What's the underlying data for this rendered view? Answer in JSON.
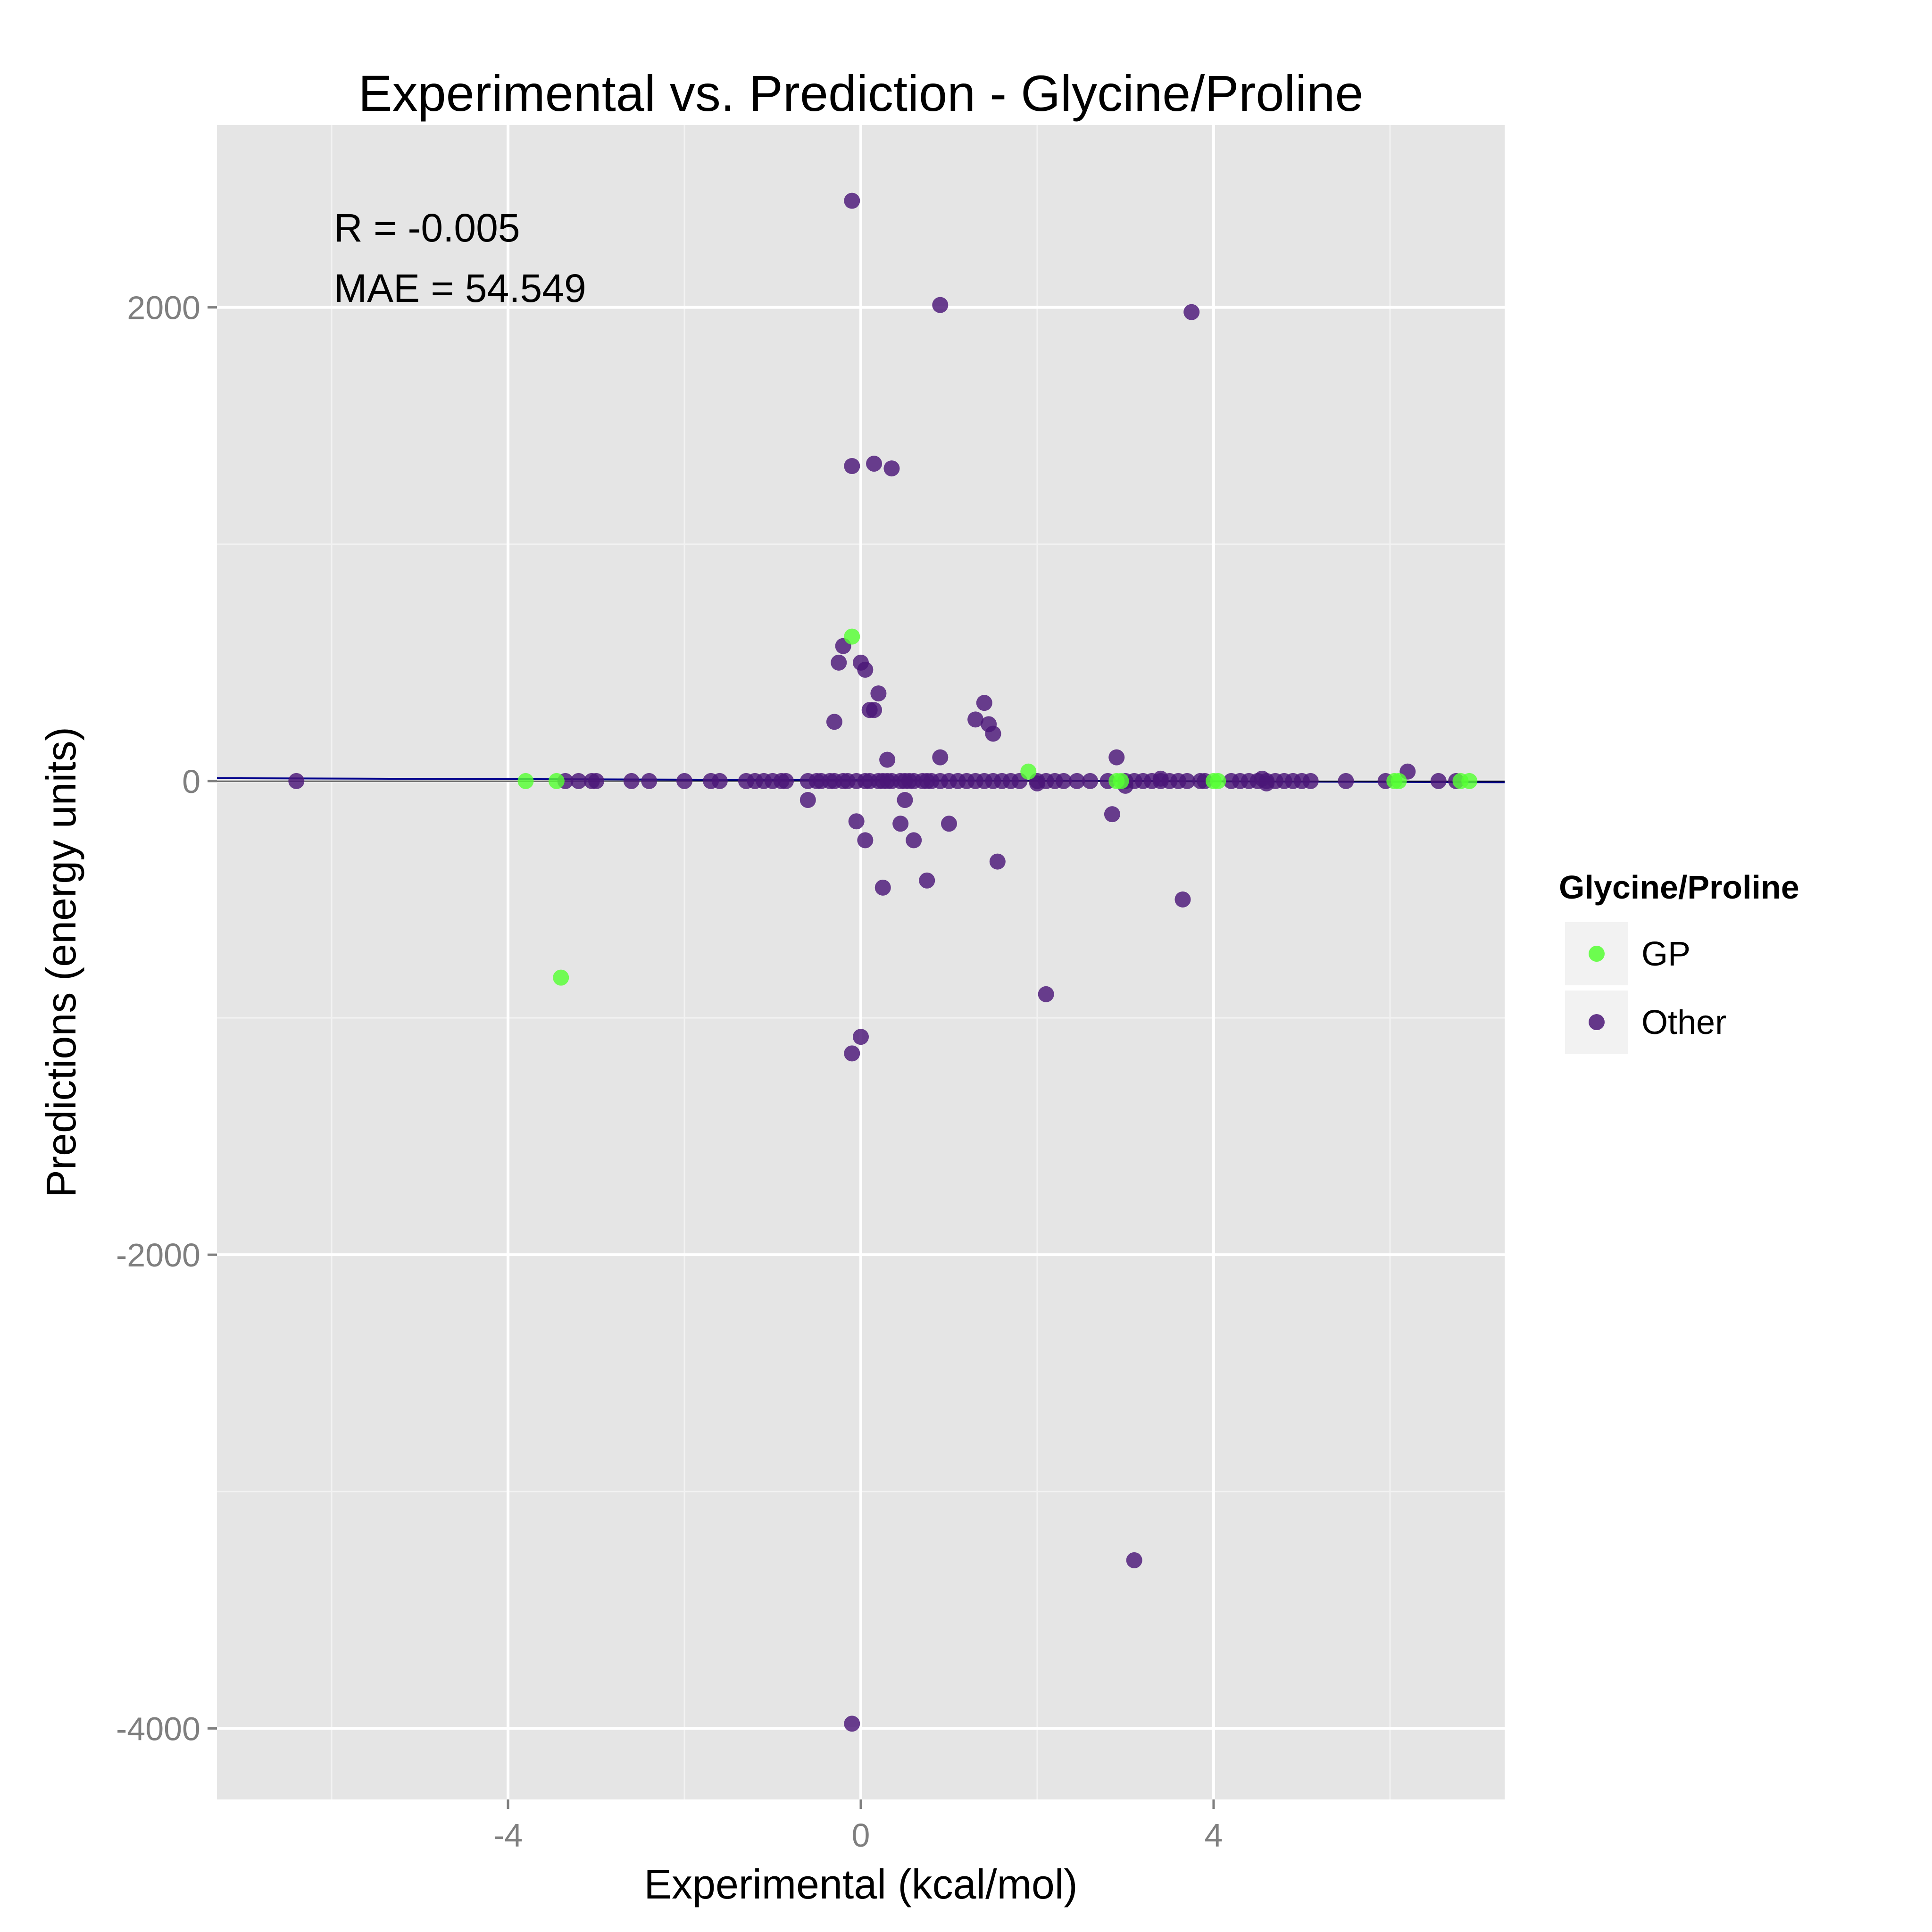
{
  "chart_data": {
    "type": "scatter",
    "title": "Experimental vs. Prediction - Glycine/Proline",
    "xlabel": "Experimental (kcal/mol)",
    "ylabel": "Predictions (energy units)",
    "xlim": [
      -7.3,
      7.3
    ],
    "ylim": [
      -4300,
      2770
    ],
    "x_ticks": [
      -4,
      0,
      4
    ],
    "x_tick_labels": [
      "-4",
      "0",
      "4"
    ],
    "y_ticks": [
      -4000,
      -2000,
      0,
      2000
    ],
    "y_tick_labels": [
      "-4000",
      "-2000",
      "0",
      "2000"
    ],
    "grid": true,
    "legend": {
      "title": "Glycine/Proline",
      "placement": "right",
      "entries": [
        {
          "label": "GP",
          "color": "#55ff33"
        },
        {
          "label": "Other",
          "color": "#4b1677"
        }
      ]
    },
    "annotations": [
      "R = -0.005",
      "MAE = 54.549"
    ],
    "fit_line": {
      "color": "#00008b",
      "x": [
        -7.3,
        7.3
      ],
      "y": [
        12,
        -5
      ]
    },
    "series": [
      {
        "name": "GP",
        "color": "#55ff33",
        "points": [
          [
            -3.8,
            0
          ],
          [
            -3.45,
            0
          ],
          [
            -3.4,
            -830
          ],
          [
            -0.1,
            610
          ],
          [
            1.9,
            40
          ],
          [
            2.9,
            0
          ],
          [
            2.95,
            0
          ],
          [
            4.0,
            0
          ],
          [
            4.05,
            0
          ],
          [
            6.05,
            0
          ],
          [
            6.1,
            0
          ],
          [
            6.8,
            0
          ],
          [
            6.9,
            0
          ]
        ]
      },
      {
        "name": "Other",
        "color": "#4b1677",
        "points": [
          [
            -0.1,
            2450
          ],
          [
            0.9,
            2010
          ],
          [
            3.75,
            1980
          ],
          [
            -0.1,
            1330
          ],
          [
            0.15,
            1340
          ],
          [
            0.35,
            1320
          ],
          [
            -0.2,
            570
          ],
          [
            -0.25,
            500
          ],
          [
            0.0,
            500
          ],
          [
            0.05,
            470
          ],
          [
            0.2,
            370
          ],
          [
            0.1,
            300
          ],
          [
            0.15,
            300
          ],
          [
            -0.3,
            250
          ],
          [
            1.4,
            330
          ],
          [
            1.3,
            260
          ],
          [
            1.45,
            240
          ],
          [
            1.5,
            200
          ],
          [
            0.3,
            90
          ],
          [
            0.9,
            100
          ],
          [
            2.9,
            100
          ],
          [
            -0.6,
            -80
          ],
          [
            0.5,
            -80
          ],
          [
            -0.05,
            -170
          ],
          [
            0.45,
            -180
          ],
          [
            1.0,
            -180
          ],
          [
            0.05,
            -250
          ],
          [
            0.6,
            -250
          ],
          [
            2.85,
            -140
          ],
          [
            1.55,
            -340
          ],
          [
            0.25,
            -450
          ],
          [
            0.75,
            -420
          ],
          [
            3.65,
            -500
          ],
          [
            2.1,
            -900
          ],
          [
            0.0,
            -1080
          ],
          [
            -0.1,
            -1150
          ],
          [
            3.1,
            -3290
          ],
          [
            -0.1,
            -3980
          ],
          [
            -6.4,
            0
          ],
          [
            -3.35,
            0
          ],
          [
            -3.2,
            0
          ],
          [
            -3.05,
            0
          ],
          [
            -3.0,
            0
          ],
          [
            -2.6,
            0
          ],
          [
            -2.4,
            0
          ],
          [
            -2.0,
            0
          ],
          [
            -1.7,
            0
          ],
          [
            -1.6,
            0
          ],
          [
            -1.3,
            0
          ],
          [
            -1.2,
            0
          ],
          [
            -1.1,
            0
          ],
          [
            -1.0,
            0
          ],
          [
            -0.9,
            0
          ],
          [
            -0.85,
            0
          ],
          [
            -0.6,
            0
          ],
          [
            -0.5,
            0
          ],
          [
            -0.45,
            0
          ],
          [
            -0.35,
            0
          ],
          [
            -0.3,
            0
          ],
          [
            -0.2,
            0
          ],
          [
            -0.15,
            0
          ],
          [
            -0.05,
            0
          ],
          [
            0.05,
            0
          ],
          [
            0.1,
            0
          ],
          [
            0.2,
            0
          ],
          [
            0.25,
            0
          ],
          [
            0.3,
            0
          ],
          [
            0.35,
            0
          ],
          [
            0.45,
            0
          ],
          [
            0.5,
            0
          ],
          [
            0.55,
            0
          ],
          [
            0.6,
            0
          ],
          [
            0.7,
            0
          ],
          [
            0.75,
            0
          ],
          [
            0.8,
            0
          ],
          [
            0.9,
            0
          ],
          [
            1.0,
            0
          ],
          [
            1.1,
            0
          ],
          [
            1.2,
            0
          ],
          [
            1.3,
            0
          ],
          [
            1.4,
            0
          ],
          [
            1.5,
            0
          ],
          [
            1.6,
            0
          ],
          [
            1.7,
            0
          ],
          [
            1.8,
            0
          ],
          [
            2.0,
            0
          ],
          [
            2.1,
            0
          ],
          [
            2.2,
            0
          ],
          [
            2.3,
            0
          ],
          [
            2.45,
            0
          ],
          [
            2.6,
            0
          ],
          [
            2.8,
            0
          ],
          [
            3.0,
            0
          ],
          [
            3.1,
            0
          ],
          [
            3.2,
            0
          ],
          [
            3.3,
            0
          ],
          [
            3.4,
            0
          ],
          [
            3.5,
            0
          ],
          [
            3.6,
            0
          ],
          [
            3.7,
            0
          ],
          [
            3.85,
            0
          ],
          [
            3.9,
            0
          ],
          [
            4.2,
            0
          ],
          [
            4.3,
            0
          ],
          [
            4.4,
            0
          ],
          [
            4.5,
            0
          ],
          [
            4.6,
            0
          ],
          [
            4.7,
            0
          ],
          [
            4.8,
            0
          ],
          [
            4.9,
            0
          ],
          [
            5.0,
            0
          ],
          [
            5.1,
            0
          ],
          [
            5.5,
            0
          ],
          [
            5.95,
            0
          ],
          [
            6.55,
            0
          ],
          [
            6.75,
            0
          ],
          [
            6.2,
            40
          ],
          [
            3.4,
            10
          ],
          [
            4.55,
            10
          ],
          [
            3.0,
            -20
          ],
          [
            4.6,
            -10
          ],
          [
            2.0,
            -10
          ]
        ]
      }
    ]
  }
}
